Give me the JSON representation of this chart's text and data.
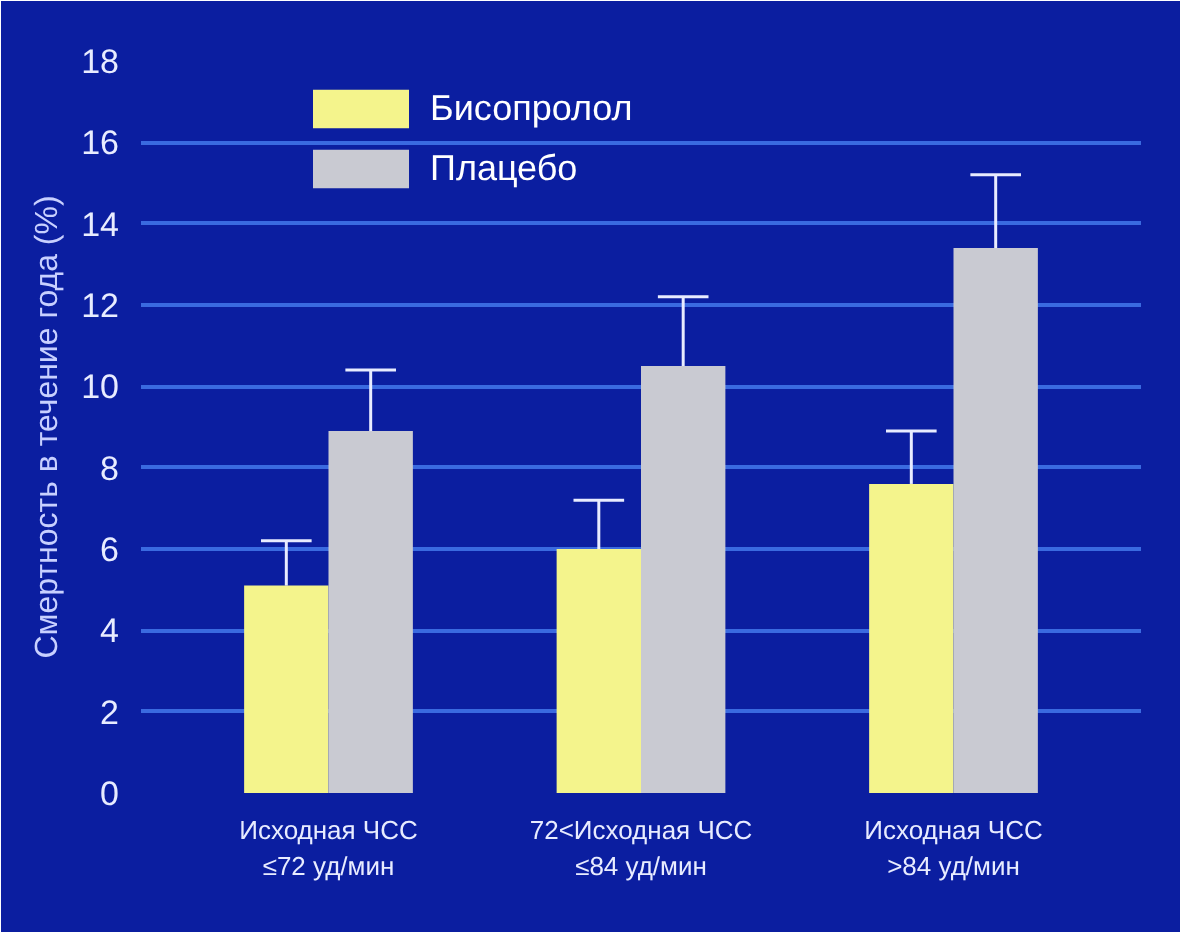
{
  "chart_data": {
    "type": "bar",
    "ylabel": "Смертность в течение года (%)",
    "categories": [
      "Исходная ЧСС\n≤72 уд/мин",
      "72<Исходная ЧСС\n≤84 уд/мин",
      "Исходная ЧСС\n>84 уд/мин"
    ],
    "series": [
      {
        "name": "Бисопролол",
        "color": "#f4f48c",
        "values": [
          5.1,
          6.0,
          7.6
        ],
        "errors": [
          [
            5.1,
            6.2
          ],
          [
            6.0,
            7.2
          ],
          [
            7.6,
            8.9
          ]
        ]
      },
      {
        "name": "Плацебо",
        "color": "#c9cad2",
        "values": [
          8.9,
          10.5,
          13.4
        ],
        "errors": [
          [
            8.9,
            10.4
          ],
          [
            10.5,
            12.2
          ],
          [
            13.4,
            15.2
          ]
        ]
      }
    ],
    "ylim": [
      0,
      18
    ],
    "yticks": [
      0,
      2,
      4,
      6,
      8,
      10,
      12,
      14,
      16,
      18
    ],
    "grid": "y",
    "legend": "top left"
  }
}
